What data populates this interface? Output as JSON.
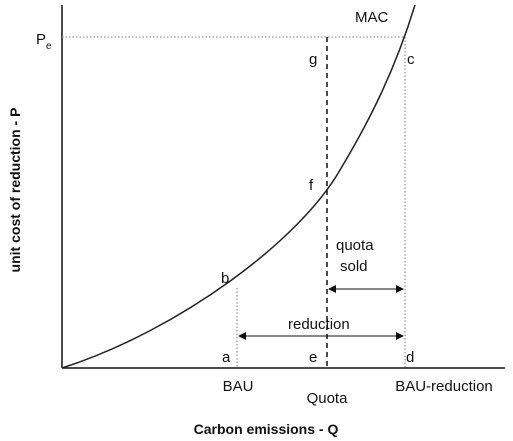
{
  "diagram": {
    "curve_label": "MAC",
    "price_label": {
      "main": "P",
      "sub": "e"
    },
    "points": {
      "g": "g",
      "c": "c",
      "f": "f",
      "b": "b",
      "a": "a",
      "e": "e",
      "d": "d"
    },
    "annotations": {
      "quota_sold": [
        "quota",
        "sold"
      ],
      "reduction": "reduction"
    },
    "x_labels": {
      "bau": "BAU",
      "quota": "Quota",
      "bau_reduction": "BAU-reduction"
    },
    "x_axis_title": "Carbon emissions - Q",
    "y_axis_title": "unit cost of reduction - P"
  }
}
